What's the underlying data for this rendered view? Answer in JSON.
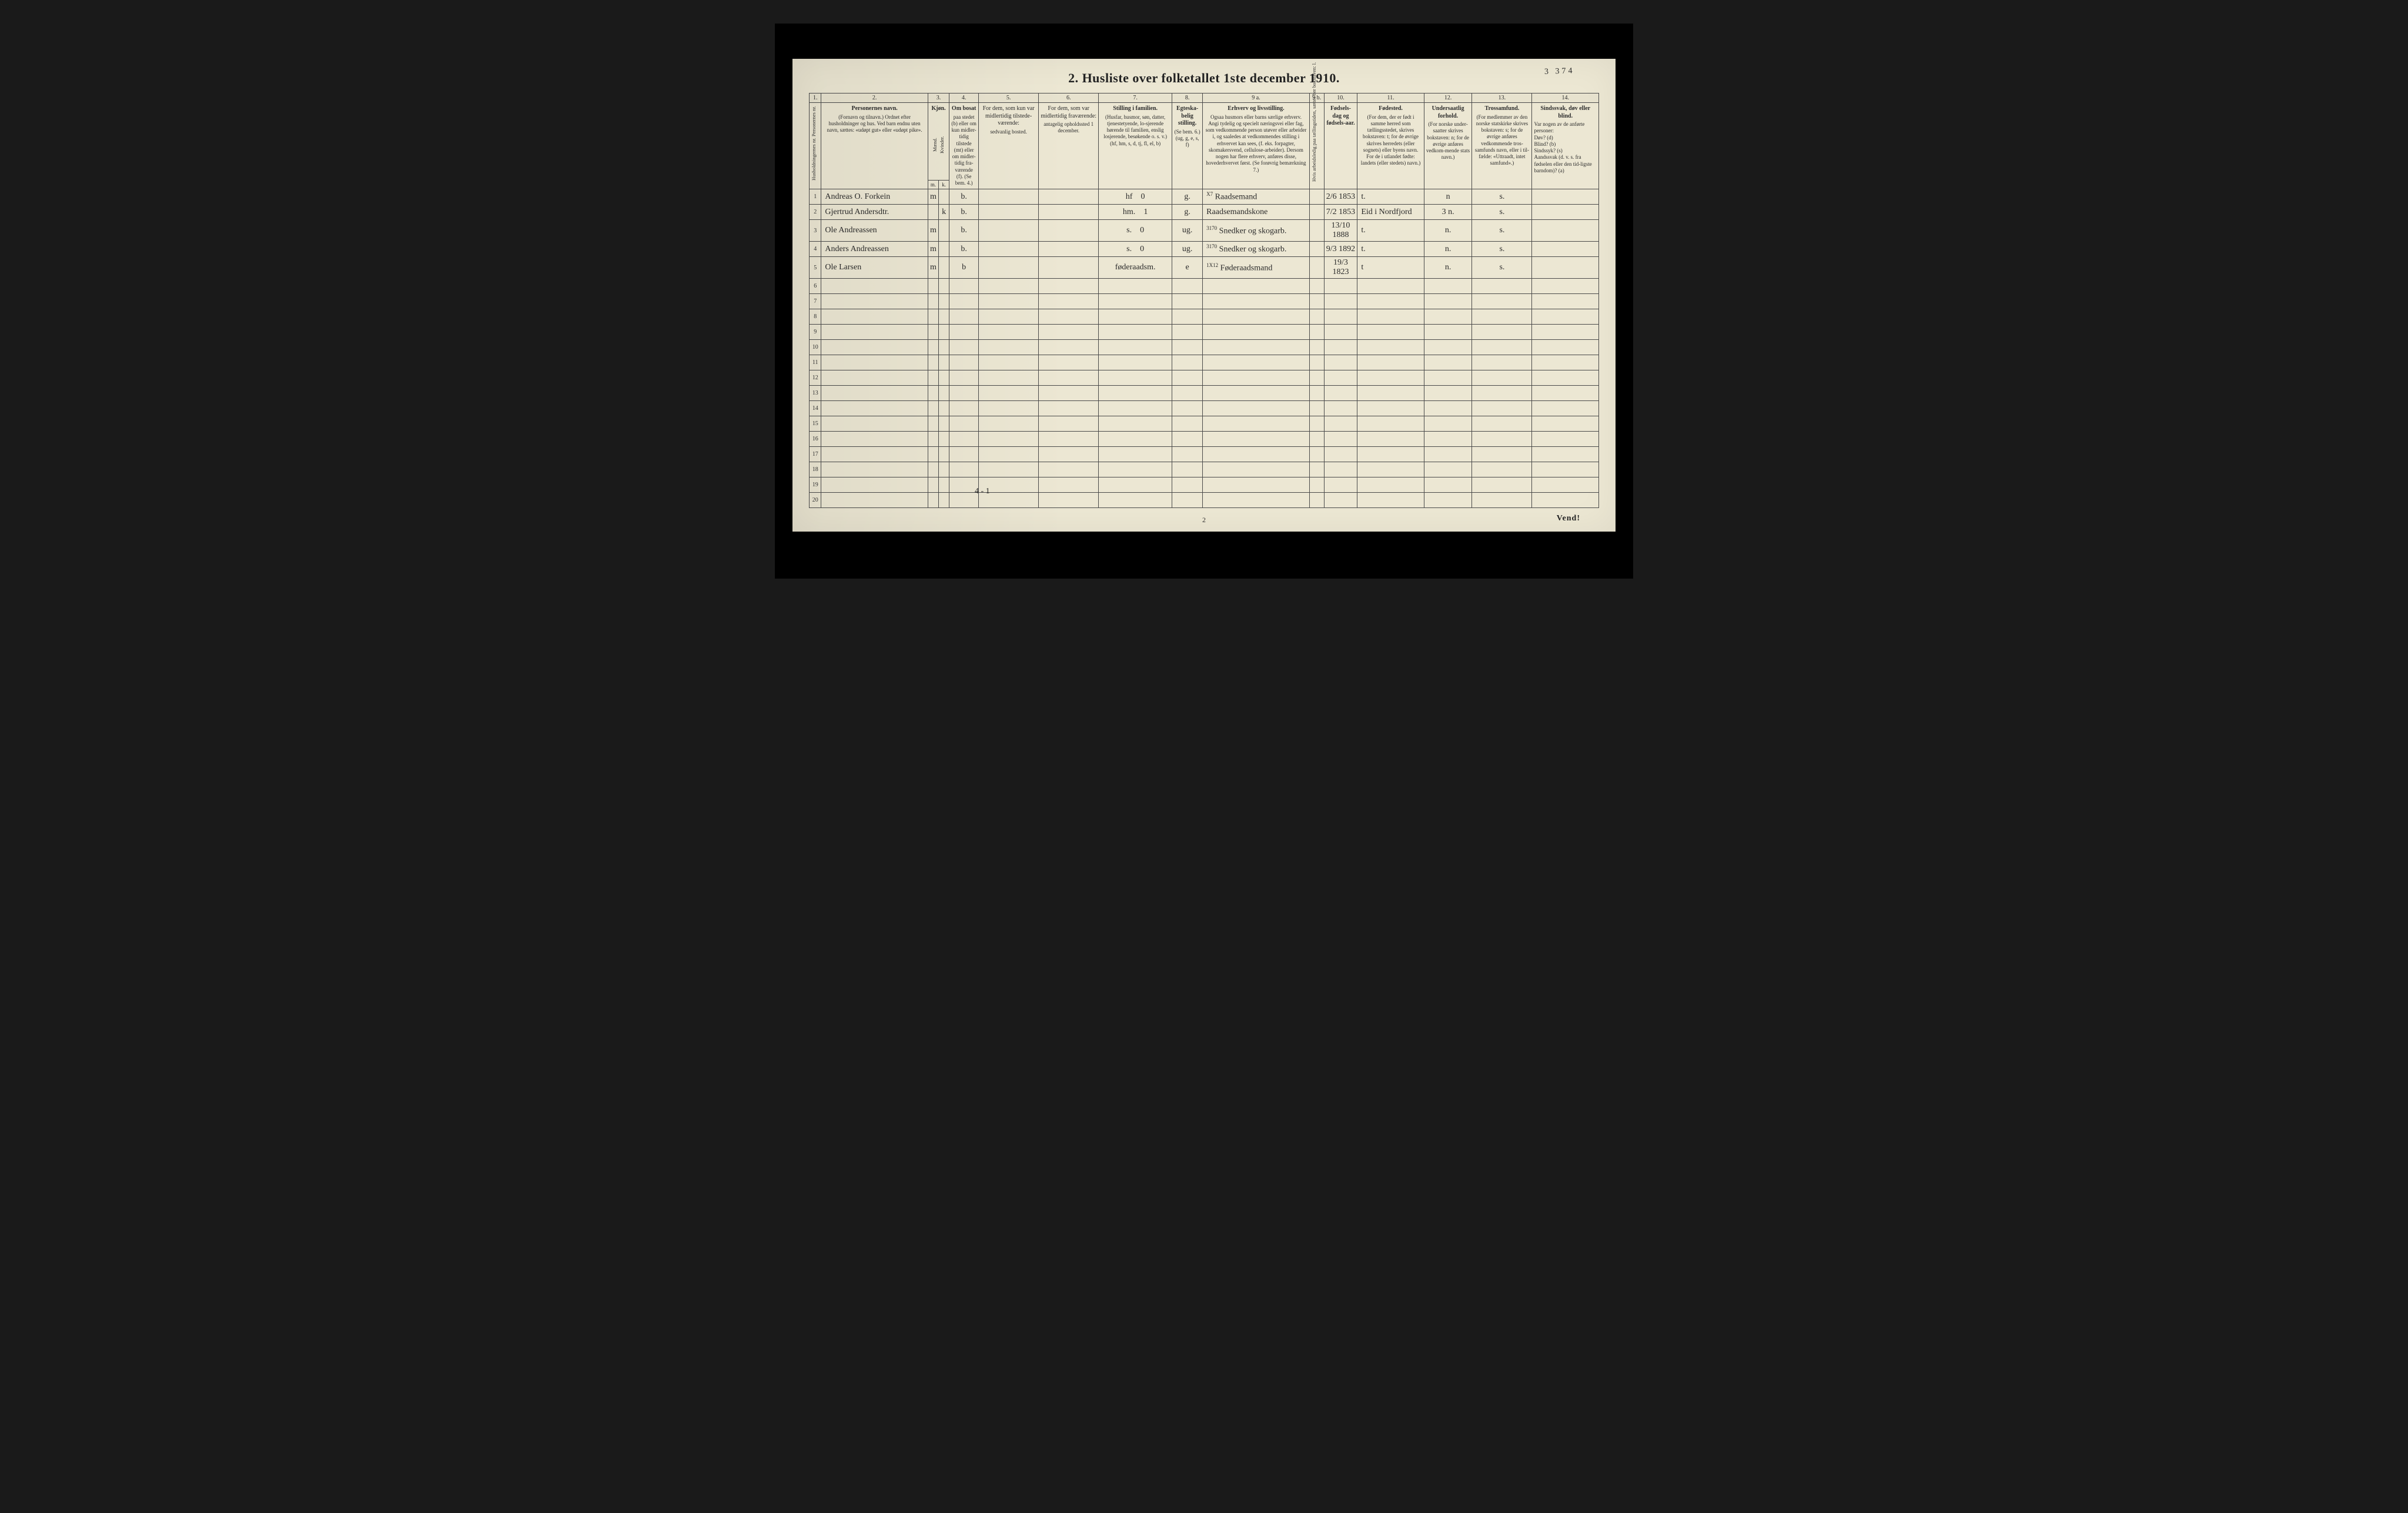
{
  "title": "2.  Husliste over folketallet 1ste december 1910.",
  "hand_number": "3 374",
  "footer_note": "Vend!",
  "page_num": "2",
  "tally_mark": "4 - 1",
  "colnums": [
    "1.",
    "2.",
    "3.",
    "4.",
    "5.",
    "6.",
    "7.",
    "8.",
    "9 a.",
    "9 b.",
    "10.",
    "11.",
    "12.",
    "13.",
    "14."
  ],
  "headers": {
    "c1": "Husholdningernes nr.\nPersonernes nr.",
    "c2_label": "Personernes navn.",
    "c2_sub": "(Fornavn og tilnavn.)\nOrdnet efter husholdninger og hus.\nVed barn endnu uten navn, sættes: «udøpt gut» eller «udøpt pike».",
    "c3_label": "Kjøn.",
    "c3_sub1": "Mænd.",
    "c3_sub2": "Kvinder.",
    "c4_label": "Om bosat",
    "c4_sub": "paa stedet (b) eller om kun midler-tidig tilstede (mt) eller om midler-tidig fra-værende (f).\n(Se bem. 4.)",
    "c5_label": "For dem, som kun var midlertidig tilstede-værende:",
    "c5_sub": "sedvanlig bosted.",
    "c6_label": "For dem, som var midlertidig fraværende:",
    "c6_sub": "antagelig opholdssted 1 december.",
    "c7_label": "Stilling i familien.",
    "c7_sub": "(Husfar, husmor, søn, datter, tjenestetyende, lo-sjerende hørende til familien, enslig losjerende, besøkende o. s. v.)\n(hf, hm, s, d, tj, fl, el, b)",
    "c8_label": "Egteska-belig stilling.",
    "c8_sub": "(Se bem. 6.)\n(ug, g, e, s, f)",
    "c9a_label": "Erhverv og livsstilling.",
    "c9a_sub": "Ogsaa husmors eller barns særlige erhverv. Angi tydelig og specielt næringsvei eller fag, som vedkommende person utøver eller arbeider i, og saaledes at vedkommendes stilling i erhvervet kan sees, (f. eks. forpagter, skomakersvend, cellulose-arbeider). Dersom nogen har flere erhverv, anføres disse, hovederhvervet først.\n(Se forøvrig bemærkning 7.)",
    "c9b": "Hvis arbeidsledig paa tællingstiden, sættes her bokstaven: l.",
    "c10_label": "Fødsels-dag og fødsels-aar.",
    "c11_label": "Fødested.",
    "c11_sub": "(For dem, der er født i samme herred som tællingsstedet, skrives bokstaven: t; for de øvrige skrives herredets (eller sognets) eller byens navn. For de i utlandet fødte: landets (eller stedets) navn.)",
    "c12_label": "Undersaatlig forhold.",
    "c12_sub": "(For norske under-saatter skrives bokstaven: n; for de øvrige anføres vedkom-mende stats navn.)",
    "c13_label": "Trossamfund.",
    "c13_sub": "(For medlemmer av den norske statskirke skrives bokstaven: s; for de øvrige anføres vedkommende tros-samfunds navn, eller i til-fælde: «Uttraadt, intet samfund».)",
    "c14_label": "Sindssvak, døv eller blind.",
    "c14_sub": "Var nogen av de anførte personer:\nDøv?        (d)\nBlind?       (b)\nSindssyk?  (s)\nAandssvak (d. v. s. fra fødselen eller den tid-ligste barndom)? (a)"
  },
  "mk": {
    "m": "m.",
    "k": "k."
  },
  "rows": [
    {
      "n": "1",
      "name": "Andreas O. Forkein",
      "m": "m",
      "k": "",
      "c4": "b.",
      "c5": "",
      "c6": "",
      "c7": "hf",
      "c7b": "0",
      "c8": "g.",
      "c9a": "Raadsemand",
      "c9a_note": "X7",
      "c9b": "",
      "c10": "2/6 1853",
      "c11": "t.",
      "c12": "n",
      "c13": "s.",
      "c14": ""
    },
    {
      "n": "2",
      "name": "Gjertrud Andersdtr.",
      "m": "",
      "k": "k",
      "c4": "b.",
      "c5": "",
      "c6": "",
      "c7": "hm.",
      "c7b": "1",
      "c8": "g.",
      "c9a": "Raadsemandskone",
      "c9a_note": "",
      "c9b": "",
      "c10": "7/2 1853",
      "c11": "Eid i Nordfjord",
      "c12": "3 n.",
      "c13": "s.",
      "c14": ""
    },
    {
      "n": "3",
      "name": "Ole Andreassen",
      "m": "m",
      "k": "",
      "c4": "b.",
      "c5": "",
      "c6": "",
      "c7": "s.",
      "c7b": "0",
      "c8": "ug.",
      "c9a": "Snedker og skogarb.",
      "c9a_note": "3170",
      "c9b": "",
      "c10": "13/10 1888",
      "c11": "t.",
      "c12": "n.",
      "c13": "s.",
      "c14": ""
    },
    {
      "n": "4",
      "name": "Anders Andreassen",
      "m": "m",
      "k": "",
      "c4": "b.",
      "c5": "",
      "c6": "",
      "c7": "s.",
      "c7b": "0",
      "c8": "ug.",
      "c9a": "Snedker og skogarb.",
      "c9a_note": "3170",
      "c9b": "",
      "c10": "9/3 1892",
      "c11": "t.",
      "c12": "n.",
      "c13": "s.",
      "c14": ""
    },
    {
      "n": "5",
      "name": "Ole Larsen",
      "m": "m",
      "k": "",
      "c4": "b",
      "c5": "",
      "c6": "",
      "c7": "føderaadsm.",
      "c7b": "",
      "c8": "e",
      "c9a": "Føderaadsmand",
      "c9a_note": "1X12",
      "c9b": "",
      "c10": "19/3 1823",
      "c11": "t",
      "c12": "n.",
      "c13": "s.",
      "c14": ""
    }
  ],
  "empty_rows": [
    "6",
    "7",
    "8",
    "9",
    "10",
    "11",
    "12",
    "13",
    "14",
    "15",
    "16",
    "17",
    "18",
    "19",
    "20"
  ],
  "total_cols": 16
}
